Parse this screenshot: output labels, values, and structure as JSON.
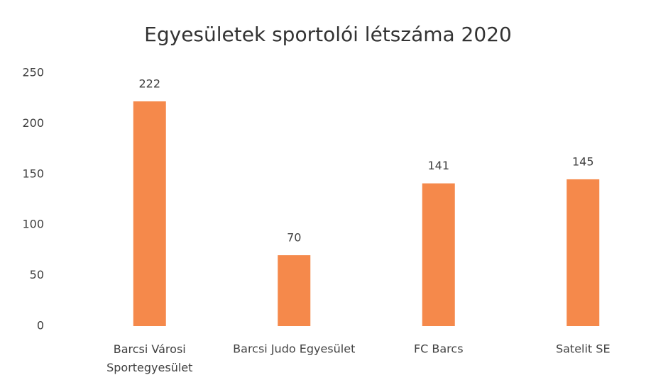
{
  "chart_data": {
    "type": "bar",
    "title": "Egyesületek sportolói létszáma 2020",
    "categories": [
      "Barcsi Városi Sportegyesület",
      "Barcsi Judo Egyesület",
      "FC Barcs",
      "Satelit SE"
    ],
    "values": [
      222,
      70,
      141,
      145
    ],
    "color": "#f5894b",
    "ylim": [
      0,
      250
    ],
    "yticks": [
      0,
      50,
      100,
      150,
      200,
      250
    ],
    "grid": false
  }
}
